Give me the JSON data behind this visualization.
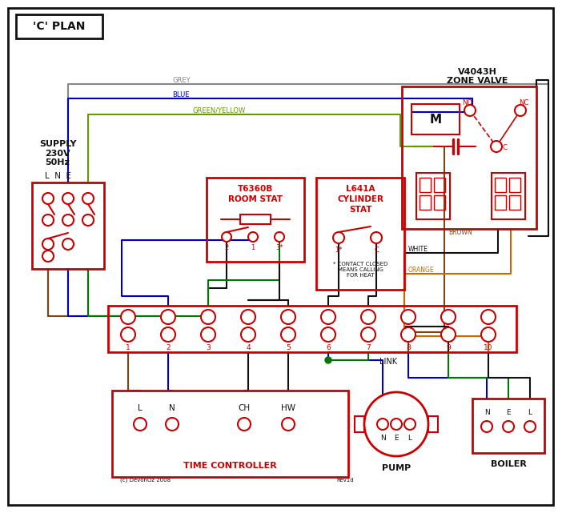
{
  "title": "'C' PLAN",
  "red": "#cc0000",
  "blue": "#0000bb",
  "green": "#007700",
  "brown": "#7a4419",
  "grey": "#888888",
  "orange": "#cc6600",
  "black": "#111111",
  "gy": "#669900",
  "supply_text": "SUPPLY\n230V\n50Hz",
  "lne_text": "L  N  E",
  "room_stat_title1": "T6360B",
  "room_stat_title2": "ROOM STAT",
  "cyl_stat_title1": "L641A",
  "cyl_stat_title2": "CYLINDER",
  "cyl_stat_title3": "STAT",
  "contact_note": "* CONTACT CLOSED\nMEANS CALLING\nFOR HEAT",
  "zone_valve_title1": "V4043H",
  "zone_valve_title2": "ZONE VALVE",
  "time_ctrl": "TIME CONTROLLER",
  "pump_label": "PUMP",
  "boiler_label": "BOILER",
  "link_label": "LINK",
  "grey_label": "GREY",
  "blue_label": "BLUE",
  "gy_label": "GREEN/YELLOW",
  "brown_label": "BROWN",
  "white_label": "WHITE",
  "orange_label": "ORANGE",
  "copyright": "(c) DevonOz 2008",
  "rev": "Rev1d"
}
